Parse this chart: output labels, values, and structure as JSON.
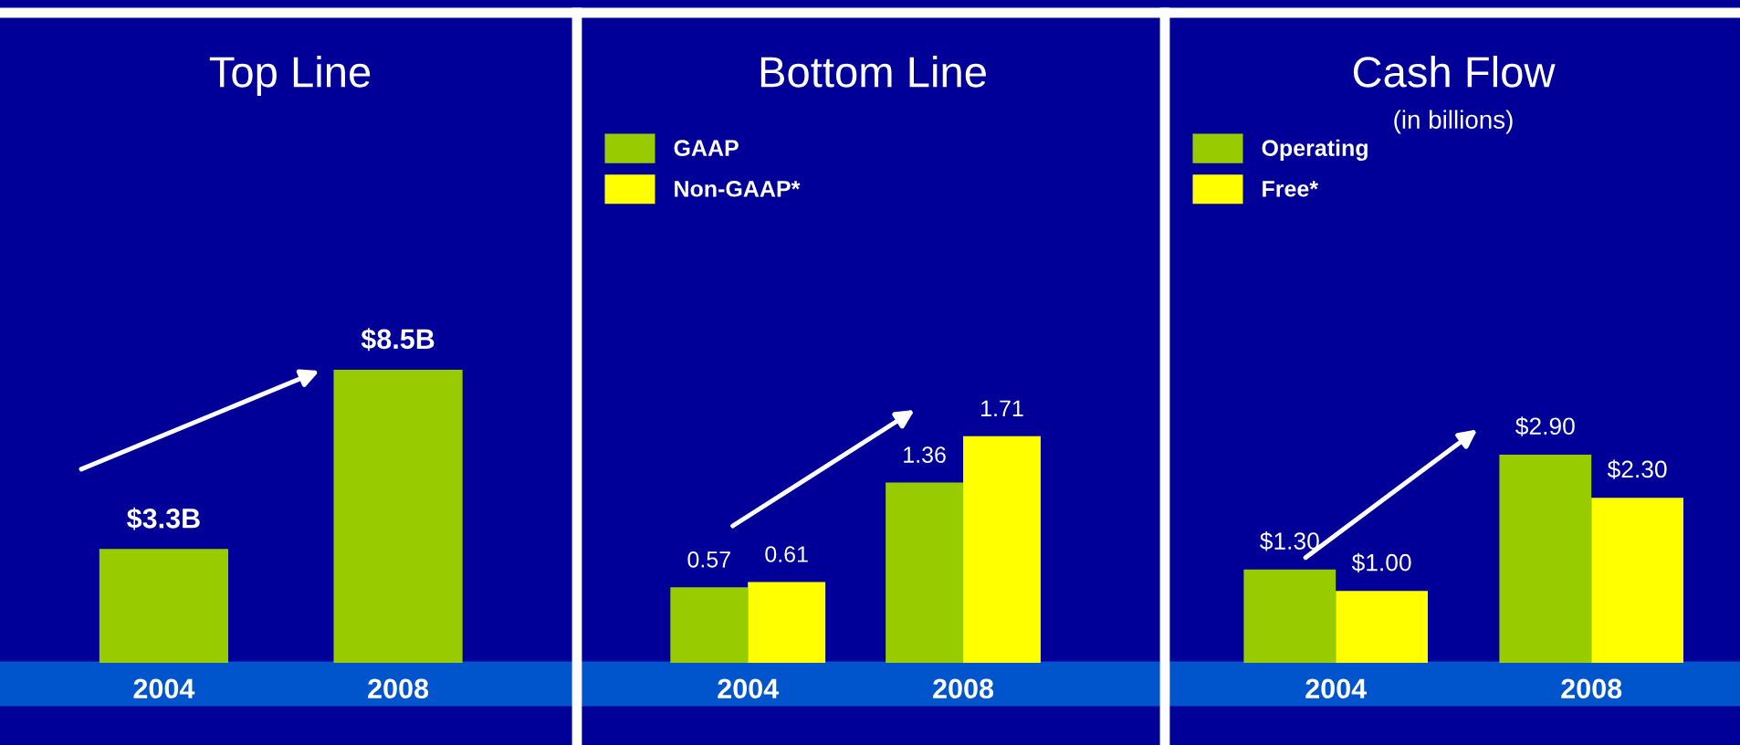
{
  "chart_data": [
    {
      "type": "bar",
      "title": "Top Line",
      "categories": [
        "2004",
        "2008"
      ],
      "series": [
        {
          "color": "#99cc00",
          "values": [
            3.3,
            8.5
          ],
          "value_labels": [
            "$3.3B",
            "$8.5B"
          ]
        }
      ],
      "legend": false
    },
    {
      "type": "bar",
      "title": "Bottom Line",
      "categories": [
        "2004",
        "2008"
      ],
      "series": [
        {
          "name": "GAAP",
          "color": "#99cc00",
          "values": [
            0.57,
            1.36
          ]
        },
        {
          "name": "Non-GAAP*",
          "color": "#ffff00",
          "values": [
            0.61,
            1.71
          ]
        }
      ],
      "data_labels": true,
      "legend": "top left"
    },
    {
      "type": "bar",
      "title": "Cash Flow",
      "subtitle": "(in billions)",
      "categories": [
        "2004",
        "2008"
      ],
      "series": [
        {
          "name": "Operating",
          "color": "#99cc00",
          "values": [
            1.3,
            2.9
          ],
          "value_labels": [
            "$1.30",
            "$2.90"
          ]
        },
        {
          "name": "Free*",
          "color": "#ffff00",
          "values": [
            1.0,
            2.3
          ],
          "value_labels": [
            "$1.00",
            "$2.30"
          ]
        }
      ],
      "legend": "top left"
    }
  ]
}
